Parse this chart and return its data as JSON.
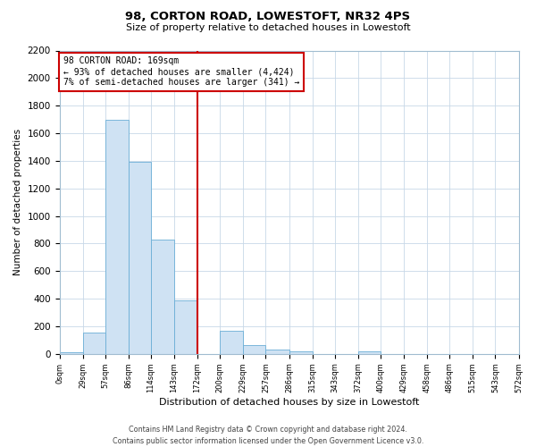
{
  "title": "98, CORTON ROAD, LOWESTOFT, NR32 4PS",
  "subtitle": "Size of property relative to detached houses in Lowestoft",
  "xlabel": "Distribution of detached houses by size in Lowestoft",
  "ylabel": "Number of detached properties",
  "bin_edges": [
    0,
    29,
    57,
    86,
    114,
    143,
    172,
    200,
    229,
    257,
    286,
    315,
    343,
    372,
    400,
    429,
    458,
    486,
    515,
    543,
    572
  ],
  "bar_heights": [
    10,
    155,
    1700,
    1390,
    830,
    385,
    0,
    165,
    65,
    30,
    20,
    0,
    0,
    20,
    0,
    0,
    0,
    0,
    0,
    0
  ],
  "bar_color": "#cfe2f3",
  "bar_edge_color": "#6aaed6",
  "vline_x": 172,
  "vline_color": "#cc0000",
  "annotation_text": "98 CORTON ROAD: 169sqm\n← 93% of detached houses are smaller (4,424)\n7% of semi-detached houses are larger (341) →",
  "annotation_box_color": "#ffffff",
  "annotation_box_edge_color": "#cc0000",
  "tick_labels": [
    "0sqm",
    "29sqm",
    "57sqm",
    "86sqm",
    "114sqm",
    "143sqm",
    "172sqm",
    "200sqm",
    "229sqm",
    "257sqm",
    "286sqm",
    "315sqm",
    "343sqm",
    "372sqm",
    "400sqm",
    "429sqm",
    "458sqm",
    "486sqm",
    "515sqm",
    "543sqm",
    "572sqm"
  ],
  "ylim": [
    0,
    2200
  ],
  "yticks": [
    0,
    200,
    400,
    600,
    800,
    1000,
    1200,
    1400,
    1600,
    1800,
    2000,
    2200
  ],
  "footer_line1": "Contains HM Land Registry data © Crown copyright and database right 2024.",
  "footer_line2": "Contains public sector information licensed under the Open Government Licence v3.0.",
  "background_color": "#ffffff",
  "grid_color": "#c8d8e8"
}
